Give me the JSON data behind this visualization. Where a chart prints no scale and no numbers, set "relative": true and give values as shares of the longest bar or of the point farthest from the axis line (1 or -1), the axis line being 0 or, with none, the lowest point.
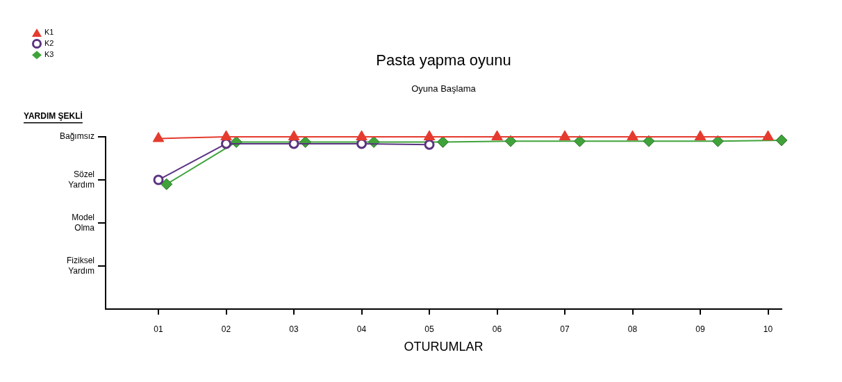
{
  "chart_data": {
    "type": "line",
    "title": "Pasta yapma oyunu",
    "subtitle": "Oyuna Başlama",
    "xlabel": "OTURUMLAR",
    "ylabel": "YARDIM ŞEKLİ",
    "xlim": [
      0.22,
      10.2
    ],
    "xticks": [
      {
        "value": 1,
        "label": "01"
      },
      {
        "value": 2,
        "label": "02"
      },
      {
        "value": 3,
        "label": "03"
      },
      {
        "value": 4,
        "label": "04"
      },
      {
        "value": 5,
        "label": "05"
      },
      {
        "value": 6,
        "label": "06"
      },
      {
        "value": 7,
        "label": "07"
      },
      {
        "value": 8,
        "label": "08"
      },
      {
        "value": 9,
        "label": "09"
      },
      {
        "value": 10,
        "label": "10"
      }
    ],
    "relative": true,
    "annotations": [
      "Fiziksel Yardım",
      "Model Olma",
      "Sözel Yardım",
      "Bağımsız"
    ],
    "grid": false,
    "legend": "top left",
    "series": [
      {
        "name": "K1",
        "color": "#e53a2e",
        "marker": "triangle",
        "x": [
          1,
          2,
          3,
          4,
          5,
          6,
          7,
          8,
          9,
          10
        ],
        "values": [
          0.99,
          1,
          1,
          1,
          1,
          1,
          1,
          1,
          1,
          1
        ]
      },
      {
        "name": "K2",
        "color": "#5b3380",
        "marker": "circle",
        "x": [
          1,
          2,
          3,
          4,
          5
        ],
        "values": [
          0.75,
          0.96,
          0.96,
          0.96,
          0.955
        ]
      },
      {
        "name": "K3",
        "color": "#3fa33a",
        "marker": "diamond",
        "x": [
          1.12,
          2.15,
          3.17,
          4.18,
          5.2,
          6.2,
          7.22,
          8.24,
          9.26,
          10.2
        ],
        "values": [
          0.725,
          0.97,
          0.97,
          0.97,
          0.97,
          0.975,
          0.975,
          0.975,
          0.975,
          0.98
        ]
      }
    ]
  }
}
